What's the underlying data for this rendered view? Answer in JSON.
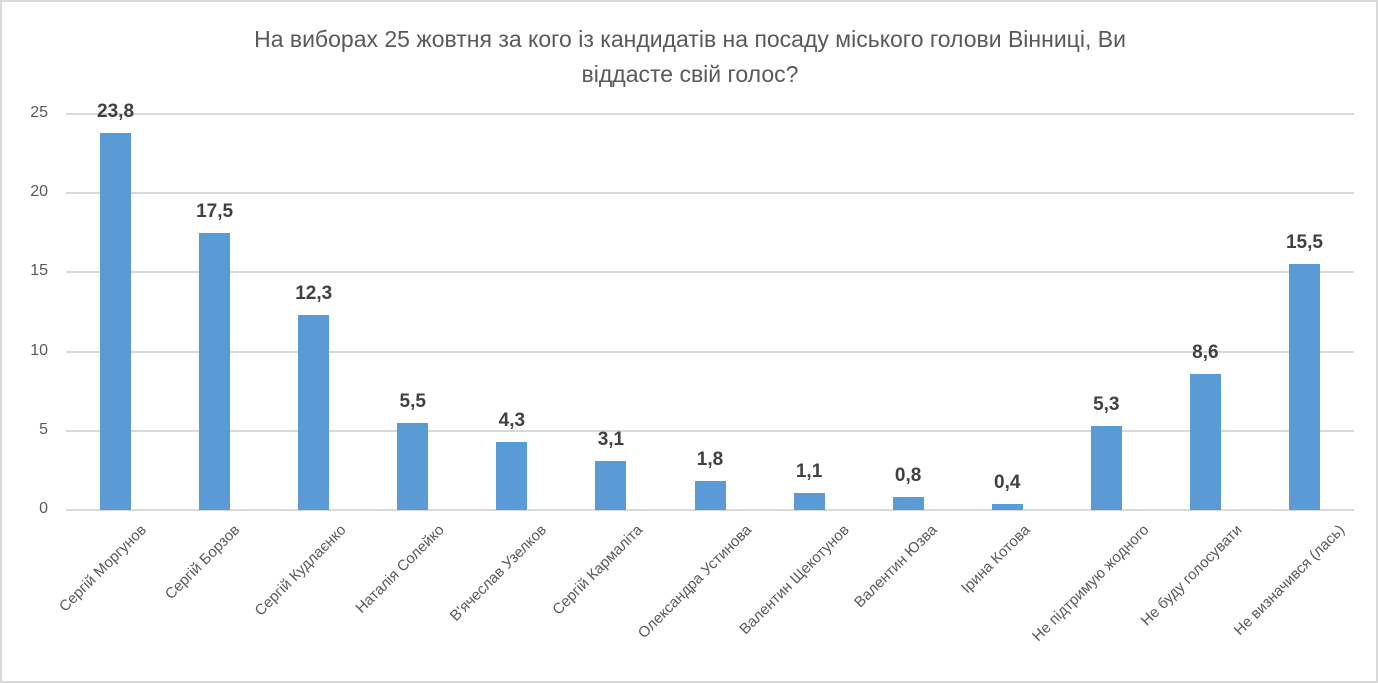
{
  "chart_data": {
    "type": "bar",
    "title": "На виборах 25 жовтня за кого із кандидатів на посаду міського голови Вінниці, Ви віддасте свій голос?",
    "title_lines": [
      "На виборах 25 жовтня за кого із кандидатів на посаду міського голови Вінниці, Ви",
      "віддасте свій голос?"
    ],
    "xlabel": "",
    "ylabel": "",
    "ylim": [
      0,
      25
    ],
    "yticks": [
      0,
      5,
      10,
      15,
      20,
      25
    ],
    "grid": true,
    "legend": null,
    "bar_color": "#5B9BD5",
    "categories": [
      "Сергій Моргунов",
      "Сергій Борзов",
      "Сергій Кудлаєнко",
      "Наталія Солейко",
      "В'ячеслав Узелков",
      "Сергій Кармаліта",
      "Олександра Устинова",
      "Валентин Щекотунов",
      "Валентин Юзва",
      "Ірина Котова",
      "Не підтримую жодного",
      "Не буду голосувати",
      "Не визначився (лась)"
    ],
    "values": [
      23.8,
      17.5,
      12.3,
      5.5,
      4.3,
      3.1,
      1.8,
      1.1,
      0.8,
      0.4,
      5.3,
      8.6,
      15.5
    ],
    "value_labels": [
      "23,8",
      "17,5",
      "12,3",
      "5,5",
      "4,3",
      "3,1",
      "1,8",
      "1,1",
      "0,8",
      "0,4",
      "5,3",
      "8,6",
      "15,5"
    ]
  }
}
